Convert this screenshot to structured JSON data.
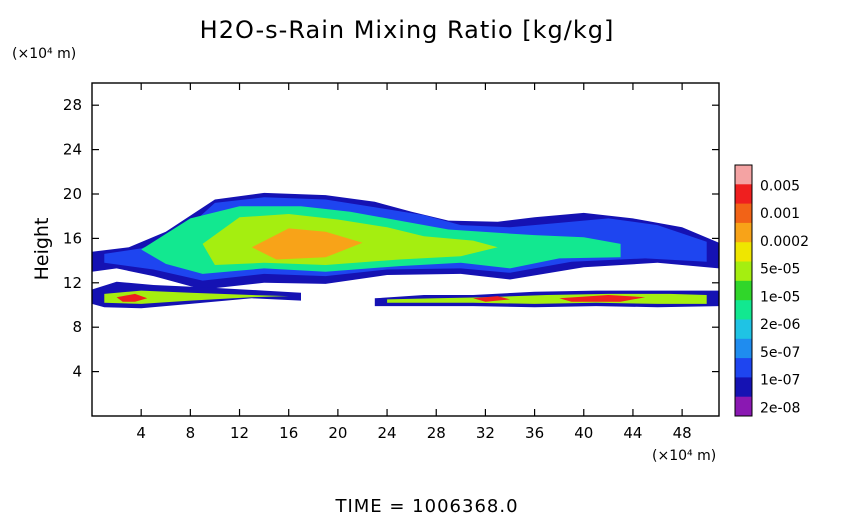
{
  "chart_data": {
    "type": "heatmap",
    "title": "H2O-s-Rain Mixing Ratio [kg/kg]",
    "ylabel": "Height",
    "yunit": "(×10⁴ m)",
    "xunit": "(×10⁴ m)",
    "xlim": [
      0,
      51
    ],
    "ylim": [
      0,
      30
    ],
    "xticks": [
      "4",
      "8",
      "12",
      "16",
      "20",
      "24",
      "28",
      "32",
      "36",
      "40",
      "44",
      "48"
    ],
    "yticks": [
      "4",
      "8",
      "12",
      "16",
      "20",
      "24",
      "28"
    ],
    "colorbar": {
      "labels": [
        "0.005",
        "0.001",
        "0.0002",
        "5e-05",
        "1e-05",
        "2e-06",
        "5e-07",
        "1e-07",
        "2e-08"
      ],
      "colors": [
        "#f4a3a3",
        "#ef1f1f",
        "#f26317",
        "#f8a318",
        "#efe600",
        "#a5ee10",
        "#30d62a",
        "#12e890",
        "#1fc3e4",
        "#1f8cef",
        "#1e45f0",
        "#1512b3",
        "#8a18b2"
      ]
    },
    "regions": [
      {
        "name": "main-anvil-envelope",
        "level": "2e-08",
        "points": [
          [
            0,
            14.8
          ],
          [
            3,
            15.2
          ],
          [
            6,
            16.6
          ],
          [
            10,
            19.5
          ],
          [
            14,
            20.1
          ],
          [
            19,
            19.9
          ],
          [
            23,
            19.3
          ],
          [
            26,
            18.4
          ],
          [
            29,
            17.6
          ],
          [
            33,
            17.5
          ],
          [
            36,
            17.9
          ],
          [
            40,
            18.3
          ],
          [
            44,
            17.8
          ],
          [
            48,
            17.0
          ],
          [
            51,
            15.6
          ],
          [
            51,
            13.3
          ],
          [
            46,
            13.8
          ],
          [
            40,
            13.4
          ],
          [
            34,
            12.3
          ],
          [
            30,
            12.8
          ],
          [
            24,
            12.7
          ],
          [
            19,
            11.9
          ],
          [
            14,
            12.0
          ],
          [
            9,
            11.4
          ],
          [
            5,
            12.6
          ],
          [
            2,
            13.3
          ],
          [
            0,
            13.0
          ]
        ]
      },
      {
        "name": "upper-cloud-core",
        "level": "1e-07",
        "points": [
          [
            1,
            14.6
          ],
          [
            4,
            15.1
          ],
          [
            7,
            16.2
          ],
          [
            10,
            19.2
          ],
          [
            14,
            19.7
          ],
          [
            19,
            19.5
          ],
          [
            23,
            18.8
          ],
          [
            27,
            18.1
          ],
          [
            30,
            17.2
          ],
          [
            34,
            17.0
          ],
          [
            38,
            17.4
          ],
          [
            42,
            17.8
          ],
          [
            46,
            17.2
          ],
          [
            50,
            15.7
          ],
          [
            50,
            13.9
          ],
          [
            45,
            14.2
          ],
          [
            39,
            13.9
          ],
          [
            34,
            12.9
          ],
          [
            30,
            13.3
          ],
          [
            24,
            13.2
          ],
          [
            19,
            12.6
          ],
          [
            14,
            12.8
          ],
          [
            9,
            12.2
          ],
          [
            5,
            13.2
          ],
          [
            1,
            13.8
          ]
        ]
      },
      {
        "name": "upper-cloud-mid",
        "level": "2e-06",
        "points": [
          [
            4,
            15.0
          ],
          [
            8,
            17.8
          ],
          [
            12,
            18.9
          ],
          [
            17,
            18.9
          ],
          [
            21,
            18.4
          ],
          [
            25,
            17.6
          ],
          [
            29,
            16.8
          ],
          [
            33,
            16.5
          ],
          [
            36,
            16.3
          ],
          [
            40,
            16.1
          ],
          [
            43,
            15.5
          ],
          [
            43,
            14.3
          ],
          [
            38,
            14.2
          ],
          [
            34,
            13.3
          ],
          [
            30,
            13.8
          ],
          [
            25,
            13.5
          ],
          [
            19,
            13.0
          ],
          [
            14,
            13.3
          ],
          [
            9,
            12.8
          ],
          [
            6,
            13.7
          ]
        ]
      },
      {
        "name": "upper-cloud-dense",
        "level": "1e-05",
        "points": [
          [
            9,
            15.5
          ],
          [
            12,
            17.9
          ],
          [
            16,
            18.2
          ],
          [
            20,
            17.7
          ],
          [
            24,
            17.0
          ],
          [
            27,
            16.2
          ],
          [
            31,
            15.8
          ],
          [
            33,
            15.2
          ],
          [
            30,
            14.4
          ],
          [
            25,
            14.1
          ],
          [
            19,
            13.6
          ],
          [
            14,
            13.8
          ],
          [
            10,
            13.6
          ]
        ]
      },
      {
        "name": "upper-cloud-peak",
        "level": "0.0002",
        "points": [
          [
            13,
            15.2
          ],
          [
            16,
            16.9
          ],
          [
            19,
            16.6
          ],
          [
            22,
            15.6
          ],
          [
            19,
            14.3
          ],
          [
            15,
            14.1
          ]
        ]
      },
      {
        "name": "lower-band-envelope",
        "level": "2e-08",
        "points": [
          [
            0,
            11.4
          ],
          [
            2,
            12.1
          ],
          [
            5,
            11.8
          ],
          [
            9,
            11.6
          ],
          [
            14,
            11.3
          ],
          [
            17,
            11.1
          ],
          [
            17,
            10.4
          ],
          [
            13,
            10.6
          ],
          [
            8,
            10.1
          ],
          [
            4,
            9.7
          ],
          [
            1,
            9.8
          ],
          [
            0,
            10.1
          ]
        ]
      },
      {
        "name": "lower-band-core",
        "level": "1e-05",
        "points": [
          [
            1,
            11.0
          ],
          [
            4,
            11.3
          ],
          [
            8,
            11.1
          ],
          [
            13,
            10.9
          ],
          [
            16,
            10.8
          ],
          [
            13,
            10.7
          ],
          [
            8,
            10.4
          ],
          [
            4,
            10.1
          ],
          [
            1,
            10.2
          ]
        ]
      },
      {
        "name": "lower-band-peak",
        "level": "0.001",
        "points": [
          [
            2,
            10.7
          ],
          [
            3.5,
            11.0
          ],
          [
            4.5,
            10.6
          ],
          [
            3.5,
            10.3
          ],
          [
            2.5,
            10.3
          ]
        ]
      },
      {
        "name": "right-band-envelope",
        "level": "2e-08",
        "points": [
          [
            23,
            10.6
          ],
          [
            27,
            10.9
          ],
          [
            31,
            10.9
          ],
          [
            36,
            11.2
          ],
          [
            41,
            11.3
          ],
          [
            46,
            11.3
          ],
          [
            51,
            11.3
          ],
          [
            51,
            9.9
          ],
          [
            46,
            9.8
          ],
          [
            41,
            9.9
          ],
          [
            36,
            9.8
          ],
          [
            31,
            9.9
          ],
          [
            27,
            9.9
          ],
          [
            23,
            9.9
          ]
        ]
      },
      {
        "name": "right-band-core",
        "level": "1e-05",
        "points": [
          [
            24,
            10.5
          ],
          [
            28,
            10.6
          ],
          [
            32,
            10.7
          ],
          [
            37,
            10.9
          ],
          [
            42,
            11.0
          ],
          [
            47,
            11.0
          ],
          [
            50,
            10.9
          ],
          [
            50,
            10.1
          ],
          [
            46,
            10.1
          ],
          [
            41,
            10.2
          ],
          [
            36,
            10.1
          ],
          [
            31,
            10.2
          ],
          [
            27,
            10.2
          ],
          [
            24,
            10.2
          ]
        ]
      },
      {
        "name": "right-band-peak",
        "level": "0.001",
        "points": [
          [
            31,
            10.6
          ],
          [
            33,
            10.8
          ],
          [
            34,
            10.5
          ],
          [
            32,
            10.3
          ]
        ]
      },
      {
        "name": "right-band-peak-2",
        "level": "0.001",
        "points": [
          [
            38,
            10.6
          ],
          [
            42,
            10.9
          ],
          [
            45,
            10.7
          ],
          [
            43,
            10.3
          ],
          [
            39,
            10.3
          ]
        ]
      }
    ]
  },
  "footer": {
    "time_label": "TIME = 1006368.0"
  }
}
